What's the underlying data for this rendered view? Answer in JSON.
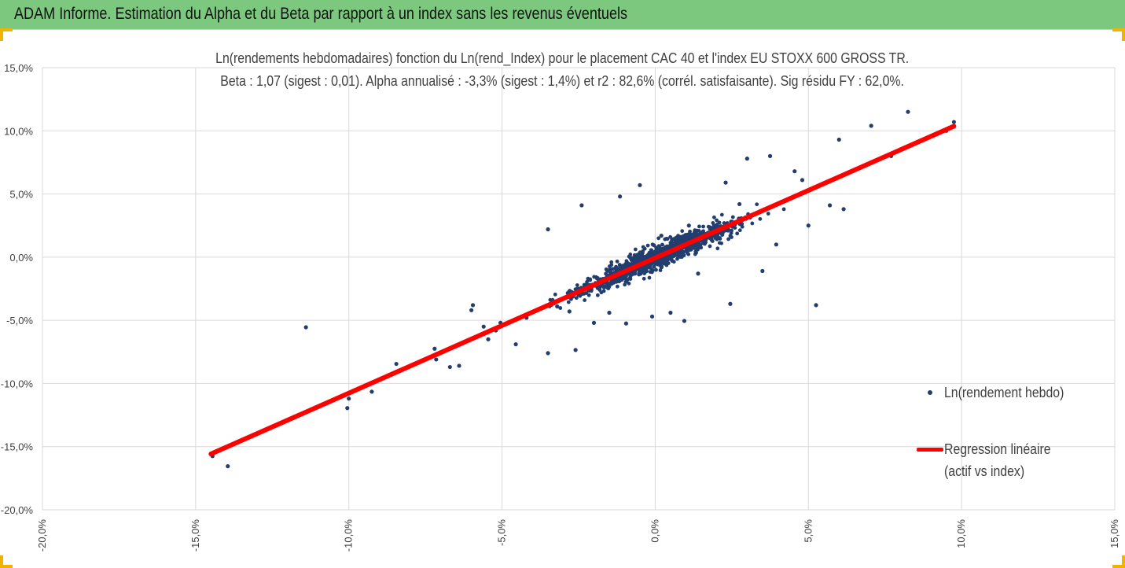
{
  "header": {
    "title": "ADAM Informe. Estimation du Alpha et du Beta par rapport à un index sans les revenus éventuels",
    "background": "#7dc87f",
    "accent": "#f0b400"
  },
  "chart_data": {
    "type": "scatter",
    "title": "Ln(rendements hebdomadaires) fonction du Ln(rend_Index) pour le placement CAC 40 et l'index EU STOXX 600 GROSS TR.",
    "subtitle": "Beta : 1,07 (sigest : 0,01). Alpha annualisé : -3,3% (sigest : 1,4%) et r2 : 82,6% (corrél. satisfaisante). Sig résidu FY : 62,0%.",
    "xlabel": "",
    "ylabel": "",
    "xlim": [
      -0.2,
      0.15
    ],
    "ylim": [
      -0.2,
      0.15
    ],
    "x_ticks": [
      -0.2,
      -0.15,
      -0.1,
      -0.05,
      0.0,
      0.05,
      0.1,
      0.15
    ],
    "x_tick_labels": [
      "-20,0%",
      "-15,0%",
      "-10,0%",
      "-5,0%",
      "0,0%",
      "5,0%",
      "10,0%",
      "15,0%"
    ],
    "y_ticks": [
      0.15,
      0.1,
      0.05,
      0.0,
      -0.05,
      -0.1,
      -0.15,
      -0.2
    ],
    "y_tick_labels": [
      "15,0%",
      "10,0%",
      "5,0%",
      "0,0%",
      "-5,0%",
      "-10,0%",
      "-15,0%",
      "-20,0%"
    ],
    "grid": true,
    "legend_position": "right",
    "series": [
      {
        "name": "Ln(rendement hebdo)",
        "kind": "scatter",
        "color": "#223e6e",
        "points": [
          [
            -0.1445,
            -0.1575
          ],
          [
            -0.1395,
            -0.1655
          ],
          [
            -0.114,
            -0.0555
          ],
          [
            -0.1005,
            -0.1195
          ],
          [
            -0.1,
            -0.112
          ],
          [
            -0.0925,
            -0.1065
          ],
          [
            -0.0845,
            -0.0845
          ],
          [
            -0.074,
            -0.08
          ],
          [
            -0.0715,
            -0.081
          ],
          [
            -0.072,
            -0.0725
          ],
          [
            -0.067,
            -0.087
          ],
          [
            -0.064,
            -0.086
          ],
          [
            -0.0595,
            -0.038
          ],
          [
            -0.06,
            -0.042
          ],
          [
            -0.056,
            -0.055
          ],
          [
            -0.0545,
            -0.065
          ],
          [
            -0.052,
            -0.058
          ],
          [
            -0.0505,
            -0.052
          ],
          [
            -0.0455,
            -0.069
          ],
          [
            -0.042,
            -0.048
          ],
          [
            -0.035,
            -0.076
          ],
          [
            -0.035,
            0.022
          ],
          [
            -0.026,
            -0.0735
          ],
          [
            -0.024,
            0.041
          ],
          [
            -0.0115,
            0.048
          ],
          [
            -0.0095,
            -0.0525
          ],
          [
            -0.028,
            -0.043
          ],
          [
            -0.032,
            -0.039
          ],
          [
            -0.02,
            -0.052
          ],
          [
            -0.015,
            -0.044
          ],
          [
            -0.005,
            0.057
          ],
          [
            -0.001,
            -0.047
          ],
          [
            0.002,
            0.017
          ],
          [
            0.005,
            -0.044
          ],
          [
            0.0095,
            -0.0505
          ],
          [
            0.0245,
            -0.037
          ],
          [
            0.0275,
            0.042
          ],
          [
            0.023,
            0.059
          ],
          [
            0.03,
            0.078
          ],
          [
            0.0375,
            0.08
          ],
          [
            0.035,
            -0.011
          ],
          [
            0.0395,
            0.01
          ],
          [
            0.0455,
            0.068
          ],
          [
            0.048,
            0.061
          ],
          [
            0.0525,
            -0.038
          ],
          [
            0.05,
            0.025
          ],
          [
            0.057,
            0.041
          ],
          [
            0.06,
            0.093
          ],
          [
            0.0615,
            0.038
          ],
          [
            0.0705,
            0.104
          ],
          [
            0.077,
            0.08
          ],
          [
            0.0825,
            0.115
          ],
          [
            0.0975,
            0.107
          ],
          [
            0.095,
            0.1
          ],
          [
            0.011,
            0.025
          ],
          [
            0.014,
            -0.013
          ]
        ]
      },
      {
        "name": "Regression linéaire",
        "name_line2": "(actif vs index)",
        "kind": "line",
        "color": "#ff0000",
        "beta": 1.07,
        "x_range": [
          -0.145,
          0.0975
        ]
      }
    ]
  }
}
